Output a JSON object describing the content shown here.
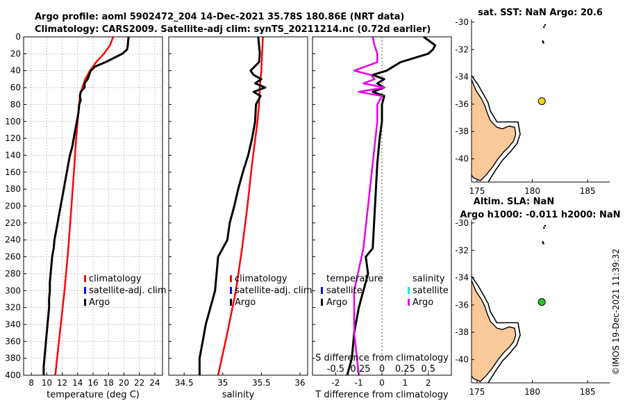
{
  "header": {
    "line1": "Argo profile: aoml 5902472_204 14-Dec-2021 35.78S 180.86E (NRT data)",
    "line2": "Climatology: CARS2009. Satellite-adj clim: synTS_20211214.nc (0.72d earlier)"
  },
  "watermark": "©IMOS 19-Dec-2021 11:39:32",
  "colors": {
    "climatology": "#ff0000",
    "satellite": "#0000ff",
    "satellite_salinity": "#00e5ff",
    "argo": "#000000",
    "argo_salinity_diff": "#e600e6",
    "land": "#f9c999",
    "sst_marker": "#ffd400",
    "sla_marker": "#22cc22"
  },
  "chart_data": [
    {
      "type": "line",
      "id": "temperature",
      "xlabel": "temperature (deg C)",
      "ylabel": "",
      "xlim": [
        7,
        25
      ],
      "ylim": [
        400,
        0
      ],
      "xticks": [
        8,
        10,
        12,
        14,
        16,
        18,
        20,
        22,
        24
      ],
      "yticks": [
        0,
        20,
        40,
        60,
        80,
        100,
        120,
        140,
        160,
        180,
        200,
        220,
        240,
        260,
        280,
        300,
        320,
        340,
        360,
        380,
        400
      ],
      "grid": true,
      "legend": {
        "entries": [
          "climatology",
          "satellite-adj. clim",
          "Argo"
        ],
        "placement": "lower-right"
      },
      "series": [
        {
          "name": "climatology",
          "depth": [
            0,
            10,
            20,
            30,
            40,
            50,
            60,
            70,
            80,
            100,
            120,
            150,
            200,
            250,
            300,
            350,
            400
          ],
          "values": [
            18.6,
            18.2,
            17.4,
            16.4,
            15.6,
            15.0,
            14.6,
            14.3,
            14.2,
            14.0,
            13.8,
            13.6,
            13.2,
            12.8,
            12.3,
            11.7,
            11.1
          ]
        },
        {
          "name": "Argo",
          "depth": [
            0,
            10,
            15,
            20,
            25,
            30,
            35,
            40,
            45,
            50,
            55,
            60,
            65,
            70,
            75,
            80,
            90,
            100,
            110,
            120,
            130,
            140,
            150,
            160,
            170,
            180,
            190,
            200,
            210,
            220,
            230,
            240,
            250,
            260,
            270,
            280,
            290,
            300,
            310,
            320,
            330,
            340,
            350,
            360,
            370,
            380,
            390,
            400
          ],
          "values": [
            20.6,
            20.5,
            20.4,
            19.8,
            18.7,
            17.6,
            16.3,
            15.7,
            15.5,
            15.3,
            14.9,
            14.9,
            14.4,
            14.3,
            14.4,
            14.2,
            14.1,
            13.9,
            13.7,
            13.5,
            13.3,
            13.0,
            12.8,
            12.6,
            12.4,
            12.2,
            12.0,
            11.8,
            11.6,
            11.4,
            11.2,
            11.0,
            10.9,
            10.7,
            10.6,
            10.5,
            10.4,
            10.4,
            10.3,
            10.3,
            10.2,
            10.1,
            10.0,
            9.9,
            9.8,
            9.7,
            9.6,
            9.6
          ]
        }
      ]
    },
    {
      "type": "line",
      "id": "salinity",
      "xlabel": "salinity",
      "ylabel": "",
      "xlim": [
        34.3,
        36.1
      ],
      "ylim": [
        400,
        0
      ],
      "xticks": [
        34.5,
        35,
        35.5,
        36
      ],
      "grid": false,
      "legend": {
        "entries": [
          "climatology",
          "satellite-adj. clim",
          "Argo"
        ],
        "placement": "lower-right"
      },
      "series": [
        {
          "name": "climatology",
          "depth": [
            0,
            20,
            40,
            60,
            80,
            100,
            150,
            200,
            250,
            300,
            350,
            400
          ],
          "values": [
            35.52,
            35.51,
            35.5,
            35.48,
            35.47,
            35.45,
            35.38,
            35.32,
            35.25,
            35.17,
            35.06,
            34.94
          ]
        },
        {
          "name": "Argo",
          "depth": [
            0,
            10,
            20,
            30,
            40,
            45,
            50,
            55,
            60,
            65,
            70,
            80,
            100,
            120,
            140,
            160,
            180,
            200,
            220,
            240,
            260,
            280,
            300,
            320,
            340,
            360,
            380,
            400
          ],
          "values": [
            35.46,
            35.47,
            35.48,
            35.47,
            35.36,
            35.4,
            35.5,
            35.42,
            35.55,
            35.4,
            35.49,
            35.43,
            35.42,
            35.38,
            35.33,
            35.26,
            35.2,
            35.15,
            35.09,
            35.06,
            34.94,
            34.92,
            34.9,
            34.84,
            34.78,
            34.74,
            34.7,
            34.7
          ]
        }
      ]
    },
    {
      "type": "line",
      "id": "difference",
      "xlabel": "T difference from climatology",
      "xlabel_top": "S difference from climatology",
      "xlim": [
        -3,
        3
      ],
      "ylim": [
        400,
        0
      ],
      "xticks": [
        -2,
        -1,
        0,
        1,
        2
      ],
      "xticks_top": [
        "-0.5",
        "-0.25",
        "0",
        "0.25",
        "0.5"
      ],
      "legend": {
        "headers": [
          "temperature",
          "salinity"
        ],
        "entries_left": [
          "satellite",
          "Argo"
        ],
        "entries_right": [
          "satellite",
          "Argo"
        ],
        "placement": "lower"
      },
      "series": [
        {
          "name": "T difference Argo",
          "depth": [
            0,
            10,
            15,
            20,
            30,
            40,
            45,
            50,
            55,
            60,
            65,
            70,
            80,
            100,
            120,
            150,
            200,
            250,
            260,
            280,
            300,
            320,
            350,
            380,
            400
          ],
          "values": [
            1.8,
            2.3,
            2.2,
            2.0,
            0.8,
            0.2,
            -0.4,
            0.1,
            -0.2,
            0.1,
            -0.4,
            0.1,
            0.0,
            0.0,
            -0.1,
            -0.2,
            -0.3,
            -0.4,
            -0.7,
            -0.6,
            -0.8,
            -1.0,
            -1.2,
            -1.3,
            -1.5
          ]
        },
        {
          "name": "S difference Argo",
          "depth": [
            0,
            10,
            20,
            30,
            40,
            45,
            50,
            55,
            60,
            65,
            70,
            80,
            100,
            150,
            200,
            250,
            300,
            350,
            400
          ],
          "values": [
            -0.1,
            -0.08,
            -0.05,
            -0.05,
            -0.3,
            -0.12,
            -0.08,
            -0.2,
            0.03,
            -0.25,
            0.0,
            -0.05,
            -0.05,
            -0.1,
            -0.15,
            -0.2,
            -0.3,
            -0.3,
            -0.25
          ]
        }
      ]
    },
    {
      "type": "scatter",
      "id": "map_sst",
      "title": "sat. SST: NaN Argo: 20.6",
      "xlim": [
        174.5,
        187
      ],
      "ylim": [
        -41.7,
        -29.8
      ],
      "xticks": [
        175,
        180,
        185
      ],
      "yticks": [
        -30,
        -32,
        -34,
        -36,
        -38,
        -40
      ],
      "marker": {
        "lon": 180.86,
        "lat": -35.78
      }
    },
    {
      "type": "scatter",
      "id": "map_sla",
      "title": "Altim. SLA: NaN",
      "subtitle": "Argo h1000: -0.011 h2000: NaN",
      "xlim": [
        174.5,
        187
      ],
      "ylim": [
        -41.7,
        -29.8
      ],
      "xticks": [
        175,
        180,
        185
      ],
      "yticks": [
        -30,
        -32,
        -34,
        -36,
        -38,
        -40
      ],
      "marker": {
        "lon": 180.86,
        "lat": -35.78
      }
    }
  ]
}
